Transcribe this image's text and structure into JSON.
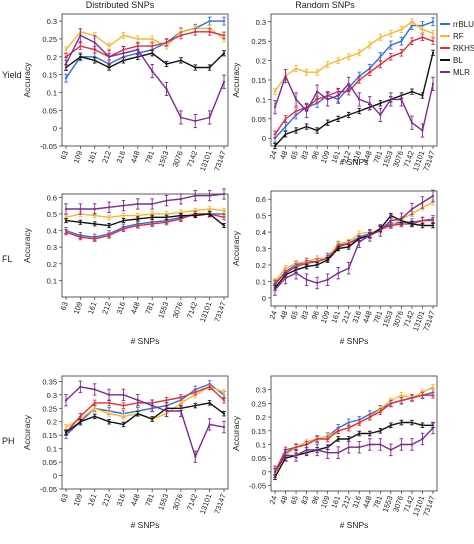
{
  "column_titles": [
    "Distributed SNPs",
    "Random SNPs"
  ],
  "row_labels": [
    "Yield",
    "FL",
    "PH"
  ],
  "axis_common": {
    "ylabel": "Accuracy",
    "xlabel": "# SNPs"
  },
  "legend": {
    "entries": [
      {
        "name": "rrBLUP",
        "color": "#2f6fd6"
      },
      {
        "name": "RF",
        "color": "#f5b731"
      },
      {
        "name": "RKHS",
        "color": "#d93042"
      },
      {
        "name": "BL",
        "color": "#111111"
      },
      {
        "name": "MLR",
        "color": "#7d2a8f"
      }
    ],
    "placement": "top-right"
  },
  "chart_data": [
    {
      "type": "line",
      "row": "Yield",
      "column": "Distributed SNPs",
      "x": [
        "63",
        "109",
        "161",
        "212",
        "316",
        "448",
        "781",
        "1553",
        "3076",
        "7142",
        "13101",
        "73147"
      ],
      "ylim": [
        -0.05,
        0.32
      ],
      "yticks": [
        "-0.05",
        "0",
        "0.05",
        "0.1",
        "0.15",
        "0.2",
        "0.25",
        "0.3"
      ],
      "xlabel": "",
      "ylabel": "Accuracy",
      "series": [
        {
          "name": "rrBLUP",
          "values": [
            0.14,
            0.2,
            0.2,
            0.18,
            0.2,
            0.21,
            0.22,
            0.24,
            0.27,
            0.28,
            0.3,
            0.3
          ]
        },
        {
          "name": "RF",
          "values": [
            0.22,
            0.27,
            0.26,
            0.23,
            0.26,
            0.25,
            0.25,
            0.23,
            0.27,
            0.28,
            0.28,
            0.25
          ]
        },
        {
          "name": "RKHS",
          "values": [
            0.2,
            0.23,
            0.22,
            0.2,
            0.22,
            0.23,
            0.23,
            0.24,
            0.26,
            0.27,
            0.27,
            0.26
          ]
        },
        {
          "name": "BL",
          "values": [
            0.17,
            0.2,
            0.19,
            0.17,
            0.19,
            0.2,
            0.21,
            0.18,
            0.19,
            0.17,
            0.17,
            0.21
          ]
        },
        {
          "name": "MLR",
          "values": [
            0.18,
            0.26,
            0.24,
            0.2,
            0.21,
            0.22,
            0.16,
            0.11,
            0.03,
            0.02,
            0.03,
            0.13
          ]
        }
      ]
    },
    {
      "type": "line",
      "row": "Yield",
      "column": "Random SNPs",
      "x": [
        "24",
        "48",
        "65",
        "83",
        "96",
        "109",
        "161",
        "212",
        "316",
        "448",
        "781",
        "1553",
        "3076",
        "7142",
        "13101",
        "73147"
      ],
      "ylim": [
        -0.02,
        0.32
      ],
      "yticks": [
        "0",
        "0.05",
        "0.1",
        "0.15",
        "0.2",
        "0.25",
        "0.3"
      ],
      "xlabel": "# SNPs",
      "ylabel": "Accuracy",
      "series": [
        {
          "name": "rrBLUP",
          "values": [
            0.0,
            0.03,
            0.06,
            0.08,
            0.09,
            0.11,
            0.1,
            0.13,
            0.16,
            0.18,
            0.21,
            0.24,
            0.25,
            0.29,
            0.29,
            0.3
          ]
        },
        {
          "name": "RF",
          "values": [
            0.12,
            0.16,
            0.18,
            0.17,
            0.17,
            0.19,
            0.2,
            0.21,
            0.22,
            0.24,
            0.26,
            0.27,
            0.28,
            0.3,
            0.28,
            0.27
          ]
        },
        {
          "name": "RKHS",
          "values": [
            0.01,
            0.05,
            0.07,
            0.08,
            0.1,
            0.11,
            0.12,
            0.12,
            0.15,
            0.17,
            0.19,
            0.21,
            0.22,
            0.25,
            0.26,
            0.25
          ]
        },
        {
          "name": "BL",
          "values": [
            -0.02,
            0.01,
            0.02,
            0.03,
            0.02,
            0.04,
            0.05,
            0.06,
            0.07,
            0.08,
            0.09,
            0.1,
            0.11,
            0.12,
            0.11,
            0.22
          ]
        },
        {
          "name": "MLR",
          "values": [
            0.08,
            0.16,
            0.1,
            0.07,
            0.12,
            0.1,
            0.11,
            0.14,
            0.1,
            0.09,
            0.06,
            0.1,
            0.1,
            0.04,
            0.02,
            0.14
          ]
        }
      ]
    },
    {
      "type": "line",
      "row": "FL",
      "column": "Distributed SNPs",
      "x": [
        "63",
        "109",
        "161",
        "212",
        "316",
        "448",
        "781",
        "1553",
        "3076",
        "7142",
        "13101",
        "73147"
      ],
      "ylim": [
        0,
        0.62
      ],
      "yticks": [
        "0.1",
        "0.2",
        "0.3",
        "0.4",
        "0.5",
        "0.6"
      ],
      "xlabel": "# SNPs",
      "ylabel": "Accuracy",
      "series": [
        {
          "name": "rrBLUP",
          "values": [
            0.4,
            0.37,
            0.36,
            0.38,
            0.42,
            0.44,
            0.45,
            0.46,
            0.48,
            0.5,
            0.5,
            0.5
          ]
        },
        {
          "name": "RF",
          "values": [
            0.48,
            0.5,
            0.49,
            0.48,
            0.49,
            0.49,
            0.5,
            0.5,
            0.51,
            0.52,
            0.53,
            0.52
          ]
        },
        {
          "name": "RKHS",
          "values": [
            0.39,
            0.36,
            0.35,
            0.37,
            0.41,
            0.43,
            0.44,
            0.45,
            0.47,
            0.5,
            0.5,
            0.48
          ]
        },
        {
          "name": "BL",
          "values": [
            0.46,
            0.45,
            0.44,
            0.43,
            0.46,
            0.47,
            0.48,
            0.48,
            0.49,
            0.49,
            0.5,
            0.43
          ]
        },
        {
          "name": "MLR",
          "values": [
            0.53,
            0.53,
            0.53,
            0.54,
            0.55,
            0.56,
            0.56,
            0.58,
            0.59,
            0.61,
            0.61,
            0.62
          ]
        }
      ]
    },
    {
      "type": "line",
      "row": "FL",
      "column": "Random SNPs",
      "x": [
        "24",
        "48",
        "65",
        "83",
        "96",
        "109",
        "161",
        "212",
        "316",
        "448",
        "781",
        "1553",
        "3076",
        "7142",
        "13101",
        "73147"
      ],
      "ylim": [
        -0.05,
        0.65
      ],
      "yticks": [
        "0",
        "0.1",
        "0.2",
        "0.3",
        "0.4",
        "0.5",
        "0.6"
      ],
      "xlabel": "# SNPs",
      "ylabel": "Accuracy",
      "series": [
        {
          "name": "rrBLUP",
          "values": [
            0.08,
            0.16,
            0.2,
            0.22,
            0.22,
            0.25,
            0.32,
            0.33,
            0.37,
            0.39,
            0.42,
            0.45,
            0.46,
            0.46,
            0.47,
            0.48
          ]
        },
        {
          "name": "RF",
          "values": [
            0.1,
            0.18,
            0.21,
            0.22,
            0.24,
            0.24,
            0.33,
            0.34,
            0.39,
            0.4,
            0.41,
            0.44,
            0.48,
            0.51,
            0.55,
            0.58
          ]
        },
        {
          "name": "RKHS",
          "values": [
            0.09,
            0.15,
            0.19,
            0.21,
            0.22,
            0.24,
            0.31,
            0.33,
            0.36,
            0.38,
            0.42,
            0.44,
            0.45,
            0.45,
            0.47,
            0.47
          ]
        },
        {
          "name": "BL",
          "values": [
            0.06,
            0.14,
            0.17,
            0.19,
            0.2,
            0.23,
            0.3,
            0.31,
            0.36,
            0.38,
            0.42,
            0.5,
            0.47,
            0.45,
            0.44,
            0.44
          ]
        },
        {
          "name": "MLR",
          "values": [
            0.05,
            0.12,
            0.15,
            0.11,
            0.09,
            0.11,
            0.15,
            0.18,
            0.34,
            0.38,
            0.41,
            0.47,
            0.48,
            0.54,
            0.58,
            0.62
          ]
        }
      ]
    },
    {
      "type": "line",
      "row": "PH",
      "column": "Distributed SNPs",
      "x": [
        "63",
        "109",
        "161",
        "212",
        "316",
        "448",
        "781",
        "1553",
        "3076",
        "7142",
        "13101",
        "73147"
      ],
      "ylim": [
        -0.05,
        0.37
      ],
      "yticks": [
        "-0.05",
        "0",
        "0.05",
        "0.1",
        "0.15",
        "0.2",
        "0.25",
        "0.3",
        "0.35"
      ],
      "xlabel": "# SNPs",
      "ylabel": "Accuracy",
      "series": [
        {
          "name": "rrBLUP",
          "values": [
            0.15,
            0.2,
            0.25,
            0.24,
            0.23,
            0.24,
            0.25,
            0.26,
            0.28,
            0.32,
            0.34,
            0.3
          ]
        },
        {
          "name": "RF",
          "values": [
            0.18,
            0.21,
            0.25,
            0.23,
            0.22,
            0.23,
            0.21,
            0.23,
            0.27,
            0.3,
            0.33,
            0.31
          ]
        },
        {
          "name": "RKHS",
          "values": [
            0.16,
            0.22,
            0.27,
            0.27,
            0.26,
            0.27,
            0.27,
            0.28,
            0.29,
            0.31,
            0.33,
            0.28
          ]
        },
        {
          "name": "BL",
          "values": [
            0.16,
            0.2,
            0.22,
            0.2,
            0.19,
            0.23,
            0.21,
            0.25,
            0.25,
            0.26,
            0.27,
            0.23
          ]
        },
        {
          "name": "MLR",
          "values": [
            0.28,
            0.33,
            0.32,
            0.3,
            0.3,
            0.28,
            0.26,
            0.24,
            0.24,
            0.07,
            0.19,
            0.18
          ]
        }
      ]
    },
    {
      "type": "line",
      "row": "PH",
      "column": "Random SNPs",
      "x": [
        "24",
        "48",
        "65",
        "83",
        "96",
        "109",
        "161",
        "212",
        "316",
        "448",
        "781",
        "1553",
        "3076",
        "7142",
        "13101",
        "73147"
      ],
      "ylim": [
        -0.07,
        0.35
      ],
      "yticks": [
        "-0.05",
        "0",
        "0.05",
        "0.1",
        "0.15",
        "0.2",
        "0.25",
        "0.3"
      ],
      "xlabel": "# SNPs",
      "ylabel": "Accuracy",
      "series": [
        {
          "name": "rrBLUP",
          "values": [
            0.0,
            0.07,
            0.09,
            0.1,
            0.12,
            0.13,
            0.16,
            0.18,
            0.19,
            0.21,
            0.23,
            0.25,
            0.26,
            0.27,
            0.28,
            0.29
          ]
        },
        {
          "name": "RF",
          "values": [
            -0.01,
            0.06,
            0.09,
            0.11,
            0.12,
            0.13,
            0.15,
            0.16,
            0.18,
            0.2,
            0.23,
            0.26,
            0.28,
            0.27,
            0.29,
            0.31
          ]
        },
        {
          "name": "RKHS",
          "values": [
            0.0,
            0.08,
            0.09,
            0.1,
            0.12,
            0.12,
            0.15,
            0.16,
            0.18,
            0.2,
            0.22,
            0.25,
            0.26,
            0.27,
            0.28,
            0.28
          ]
        },
        {
          "name": "BL",
          "values": [
            -0.02,
            0.05,
            0.06,
            0.07,
            0.08,
            0.09,
            0.12,
            0.12,
            0.14,
            0.14,
            0.15,
            0.17,
            0.18,
            0.18,
            0.17,
            0.17
          ]
        },
        {
          "name": "MLR",
          "values": [
            0.0,
            0.06,
            0.06,
            0.08,
            0.08,
            0.07,
            0.07,
            0.09,
            0.09,
            0.1,
            0.1,
            0.08,
            0.1,
            0.1,
            0.12,
            0.16
          ]
        }
      ]
    }
  ]
}
